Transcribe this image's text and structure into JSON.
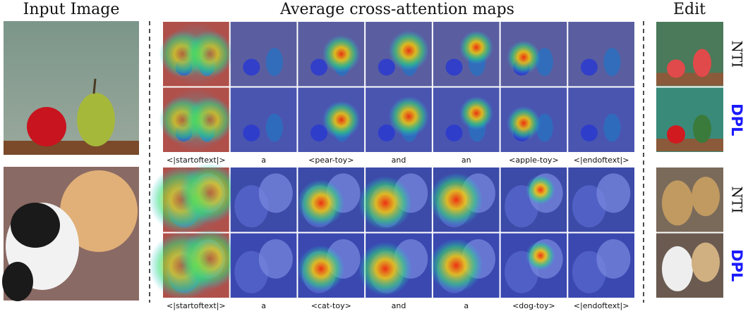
{
  "headers": {
    "input": "Input Image",
    "attention": "Average cross-attention maps",
    "edit": "Edit"
  },
  "examples": [
    {
      "tokens": [
        "<|startoftext|>",
        "a",
        "<pear-toy>",
        "and",
        "an",
        "<apple-toy>",
        "<|endoftext|>"
      ],
      "methods": [
        "NTI",
        "DPL"
      ]
    },
    {
      "tokens": [
        "<|startoftext|>",
        "a",
        "<cat-toy>",
        "and",
        "a",
        "<dog-toy>",
        "<|endoftext|>"
      ],
      "methods": [
        "NTI",
        "DPL"
      ]
    }
  ]
}
